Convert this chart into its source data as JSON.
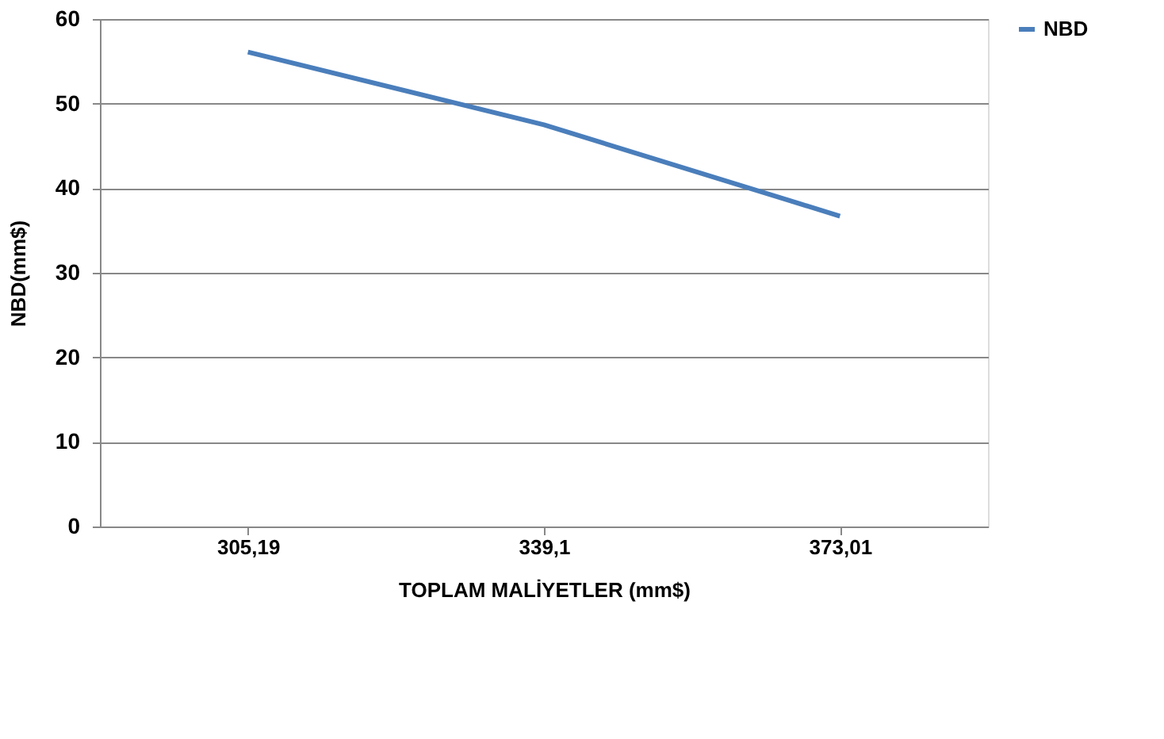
{
  "chart_data": {
    "type": "line",
    "xlabel": "TOPLAM MALİYETLER (mm$)",
    "ylabel": "NBD(mm$)",
    "categories": [
      "305,19",
      "339,1",
      "373,01"
    ],
    "series": [
      {
        "name": "NBD",
        "color": "#4a7ebb",
        "values": [
          56.1,
          47.5,
          36.7
        ]
      }
    ],
    "ylim": [
      0,
      60
    ],
    "yticks": [
      0,
      10,
      20,
      30,
      40,
      50,
      60
    ],
    "grid": "y",
    "legend": "right",
    "marker": "none",
    "line_style": "solid"
  }
}
